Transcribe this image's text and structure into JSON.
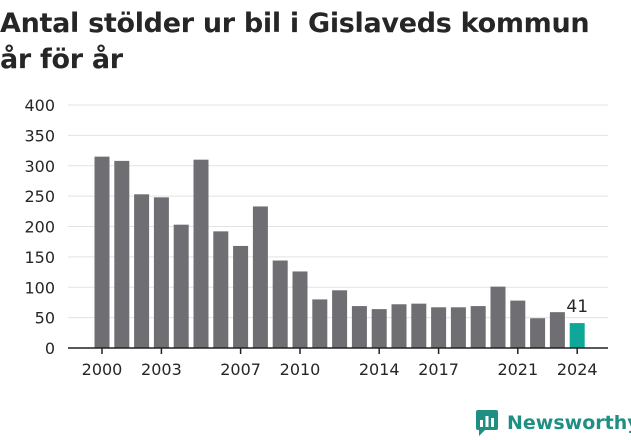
{
  "title": "Antal stölder ur bil i Gislaveds kommun år för år",
  "brand": {
    "name": "Newsworthy",
    "icon": "newsworthy-chart-bubble-icon"
  },
  "colors": {
    "bar": "#6f6e73",
    "highlight": "#0fa797",
    "grid": "#e3e3e3",
    "axis": "#222222",
    "text": "#262626",
    "brand": "#1f8f84"
  },
  "chart_data": {
    "type": "bar",
    "title": "Antal stölder ur bil i Gislaveds kommun år för år",
    "xlabel": "",
    "ylabel": "",
    "categories": [
      2000,
      2001,
      2002,
      2003,
      2004,
      2005,
      2006,
      2007,
      2008,
      2009,
      2010,
      2011,
      2012,
      2013,
      2014,
      2015,
      2016,
      2017,
      2018,
      2019,
      2020,
      2021,
      2022,
      2023,
      2024
    ],
    "values": [
      315,
      308,
      253,
      248,
      203,
      310,
      192,
      168,
      233,
      144,
      126,
      80,
      95,
      69,
      64,
      72,
      73,
      67,
      67,
      69,
      101,
      78,
      49,
      59,
      41
    ],
    "x_tick_labels": [
      "2000",
      "2003",
      "2007",
      "2010",
      "2014",
      "2017",
      "2021",
      "2024"
    ],
    "y_ticks": [
      0,
      50,
      100,
      150,
      200,
      250,
      300,
      350,
      400
    ],
    "ylim": [
      0,
      400
    ],
    "grid": true,
    "highlight": {
      "category": 2024,
      "label": "41"
    }
  }
}
